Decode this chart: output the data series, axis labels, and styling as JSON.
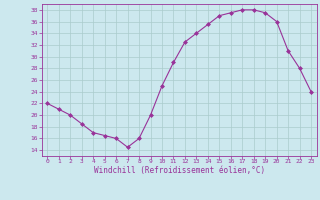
{
  "x": [
    0,
    1,
    2,
    3,
    4,
    5,
    6,
    7,
    8,
    9,
    10,
    11,
    12,
    13,
    14,
    15,
    16,
    17,
    18,
    19,
    20,
    21,
    22,
    23
  ],
  "y": [
    22,
    21,
    20,
    18.5,
    17,
    16.5,
    16,
    14.5,
    16,
    20,
    25,
    29,
    32.5,
    34,
    35.5,
    37,
    37.5,
    38,
    38,
    37.5,
    36,
    31,
    28,
    24
  ],
  "line_color": "#993399",
  "marker": "D",
  "marker_size": 2.0,
  "background_color": "#cce8ee",
  "grid_color": "#aacccc",
  "xlabel": "Windchill (Refroidissement éolien,°C)",
  "xlabel_color": "#993399",
  "xlim": [
    -0.5,
    23.5
  ],
  "ylim": [
    13,
    39
  ],
  "yticks": [
    14,
    16,
    18,
    20,
    22,
    24,
    26,
    28,
    30,
    32,
    34,
    36,
    38
  ],
  "xticks": [
    0,
    1,
    2,
    3,
    4,
    5,
    6,
    7,
    8,
    9,
    10,
    11,
    12,
    13,
    14,
    15,
    16,
    17,
    18,
    19,
    20,
    21,
    22,
    23
  ],
  "tick_color": "#993399",
  "axis_color": "#993399",
  "spine_color": "#993399"
}
